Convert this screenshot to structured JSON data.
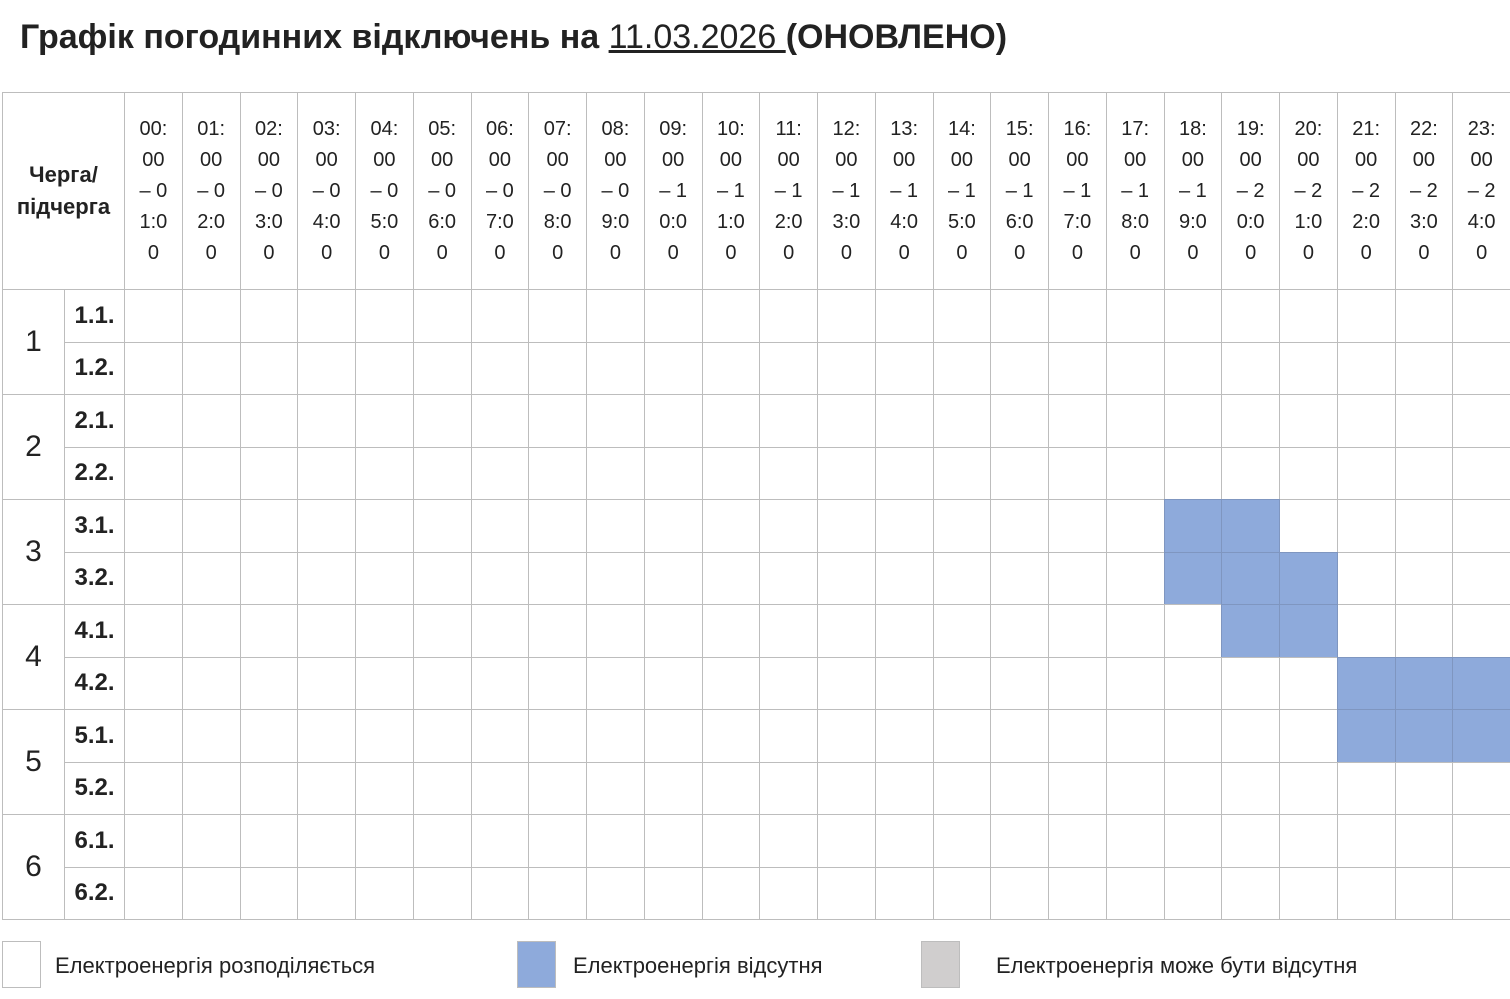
{
  "title": {
    "prefix": "Графік погодинних відключень на ",
    "date": "11.03.2026 ",
    "suffix": "(ОНОВЛЕНО)"
  },
  "table": {
    "corner": "Черга/ підчерга",
    "hours": [
      "00:00 – 01:00",
      "01:00 – 02:00",
      "02:00 – 03:00",
      "03:00 – 04:00",
      "04:00 – 05:00",
      "05:00 – 06:00",
      "06:00 – 07:00",
      "07:00 – 08:00",
      "08:00 – 09:00",
      "09:00 – 10:00",
      "10:00 – 11:00",
      "11:00 – 12:00",
      "12:00 – 13:00",
      "13:00 – 14:00",
      "14:00 – 15:00",
      "15:00 – 16:00",
      "16:00 – 17:00",
      "17:00 – 18:00",
      "18:00 – 19:00",
      "19:00 – 20:00",
      "20:00 – 21:00",
      "21:00 – 22:00",
      "22:00 – 23:00",
      "23:00 – 24:00"
    ],
    "groups": [
      {
        "label": "1",
        "subgroups": [
          {
            "label": "1.1.",
            "off": []
          },
          {
            "label": "1.2.",
            "off": []
          }
        ]
      },
      {
        "label": "2",
        "subgroups": [
          {
            "label": "2.1.",
            "off": []
          },
          {
            "label": "2.2.",
            "off": []
          }
        ]
      },
      {
        "label": "3",
        "subgroups": [
          {
            "label": "3.1.",
            "off": [
              18,
              19
            ]
          },
          {
            "label": "3.2.",
            "off": [
              18,
              19,
              20
            ]
          }
        ]
      },
      {
        "label": "4",
        "subgroups": [
          {
            "label": "4.1.",
            "off": [
              19,
              20
            ]
          },
          {
            "label": "4.2.",
            "off": [
              21,
              22,
              23
            ]
          }
        ]
      },
      {
        "label": "5",
        "subgroups": [
          {
            "label": "5.1.",
            "off": [
              21,
              22,
              23
            ]
          },
          {
            "label": "5.2.",
            "off": []
          }
        ]
      },
      {
        "label": "6",
        "subgroups": [
          {
            "label": "6.1.",
            "off": []
          },
          {
            "label": "6.2.",
            "off": []
          }
        ]
      }
    ]
  },
  "legend": [
    {
      "label": "Електроенергія розподіляється",
      "color": "#ffffff"
    },
    {
      "label": "Електроенергія відсутня",
      "color": "#8eaadb"
    },
    {
      "label": "Електроенергія може бути відсутня",
      "color": "#d0cece"
    }
  ]
}
